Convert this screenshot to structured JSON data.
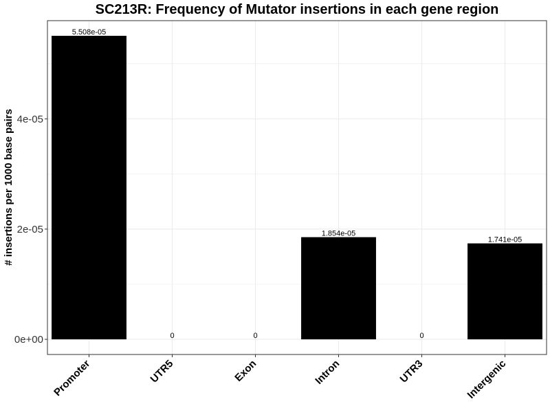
{
  "chart_data": {
    "type": "bar",
    "title": "SC213R: Frequency of Mutator insertions in each gene region",
    "xlabel": "",
    "ylabel": "# insertions per 1000 base pairs",
    "categories": [
      "Promoter",
      "UTR5",
      "Exon",
      "Intron",
      "UTR3",
      "Intergenic"
    ],
    "values": [
      5.508e-05,
      0,
      0,
      1.854e-05,
      0,
      1.741e-05
    ],
    "data_labels": [
      "5.508e-05",
      "0",
      "0",
      "1.854e-05",
      "0",
      "1.741e-05"
    ],
    "y_ticks": [
      0,
      2e-05,
      4e-05
    ],
    "y_tick_labels": [
      "0e+00",
      "2e-05",
      "4e-05"
    ],
    "ylim": [
      -2.754e-06,
      5.7834e-05
    ],
    "grid": true,
    "bar_color": "#000000",
    "grid_color": "#ebebeb",
    "panel_border_color": "#333333",
    "legend": "none"
  }
}
